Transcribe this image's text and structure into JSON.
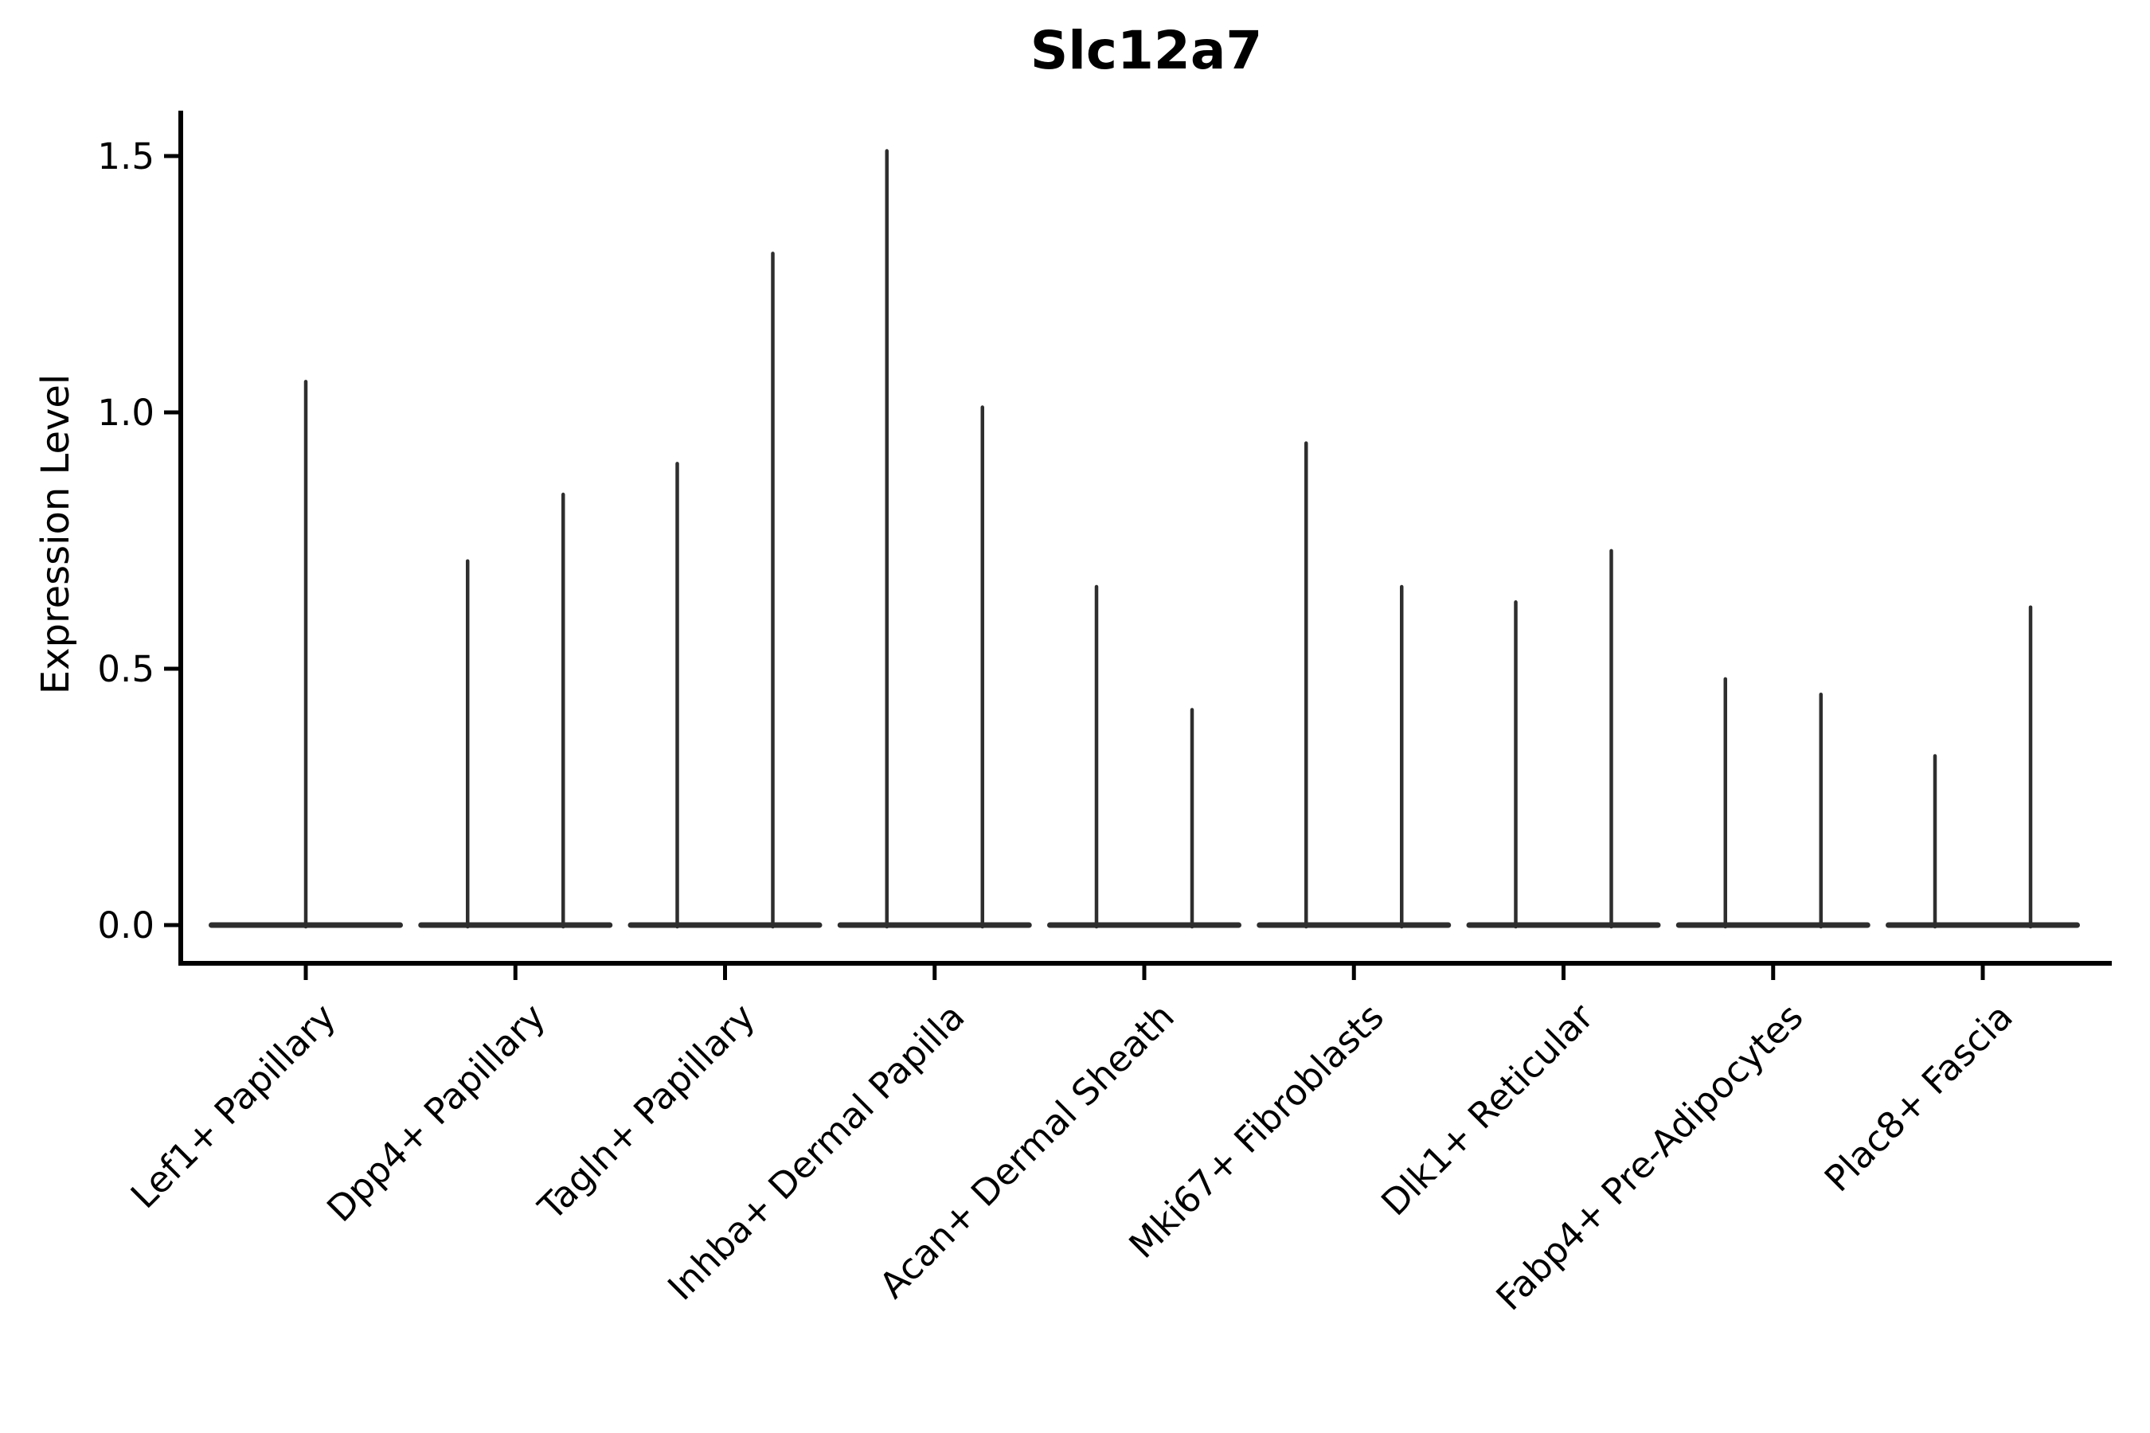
{
  "figure": {
    "background": "#ffffff"
  },
  "chart_data": {
    "type": "violin",
    "title": "Slc12a7",
    "xlabel": "",
    "ylabel": "Expression Level",
    "categories": [
      "Lef1+ Papillary",
      "Dpp4+ Papillary",
      "Tagln+ Papillary",
      "Inhba+ Dermal Papilla",
      "Acan+ Dermal Sheath",
      "Mki67+ Fibroblasts",
      "Dlk1+ Reticular",
      "Fabp4+ Pre-Adipocytes",
      "Plac8+ Fascia"
    ],
    "ytick_labels": [
      "0.0",
      "0.5",
      "1.0",
      "1.5"
    ],
    "ytick_values": [
      0.0,
      0.5,
      1.0,
      1.5
    ],
    "ylim": [
      -0.07,
      1.58
    ],
    "xtick_rotation_deg": 45,
    "grid": false,
    "legend": null,
    "violins": [
      {
        "category": "Lef1+ Papillary",
        "spike_values": [
          1.06
        ]
      },
      {
        "category": "Dpp4+ Papillary",
        "spike_values": [
          0.71,
          0.84
        ]
      },
      {
        "category": "Tagln+ Papillary",
        "spike_values": [
          0.9,
          1.31
        ]
      },
      {
        "category": "Inhba+ Dermal Papilla",
        "spike_values": [
          1.51,
          1.01
        ]
      },
      {
        "category": "Acan+ Dermal Sheath",
        "spike_values": [
          0.66,
          0.42
        ]
      },
      {
        "category": "Mki67+ Fibroblasts",
        "spike_values": [
          0.94,
          0.66
        ]
      },
      {
        "category": "Dlk1+ Reticular",
        "spike_values": [
          0.63,
          0.73
        ]
      },
      {
        "category": "Fabp4+ Pre-Adipocytes",
        "spike_values": [
          0.48,
          0.45
        ]
      },
      {
        "category": "Plac8+ Fascia",
        "spike_values": [
          0.33,
          0.62
        ]
      }
    ],
    "shape_note": "Each violin is collapsed at 0 (flat horizontal baseline band) with a thin vertical spike reaching the maximum expression value; expression density is concentrated at 0."
  },
  "style": {
    "background": "#ffffff",
    "spike_color": "#2e2e2e",
    "baseline_color": "#2e2e2e",
    "axis_color": "#000000",
    "text_color": "#000000"
  }
}
